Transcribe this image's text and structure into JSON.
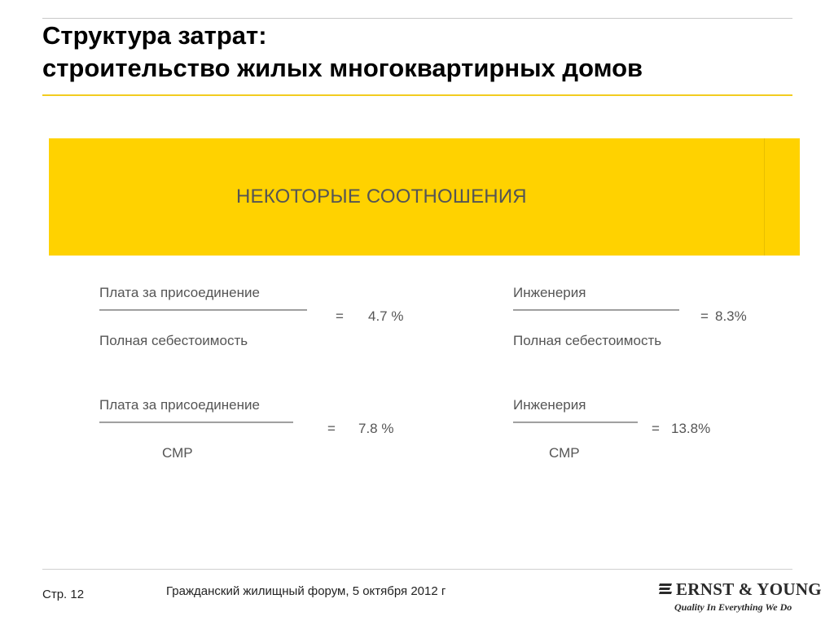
{
  "slide": {
    "title_line1": "Структура затрат:",
    "title_line2": "строительство жилых многоквартирных домов",
    "banner": "НЕКОТОРЫЕ СООТНОШЕНИЯ"
  },
  "ratios": [
    {
      "numerator": "Плата за присоединение",
      "line": "———————————————",
      "equals": "=",
      "value": "4.7 %",
      "denominator": "Полная себестоимость"
    },
    {
      "numerator": "Инженерия",
      "line": "————————————",
      "equals": "=",
      "value": "8.3%",
      "denominator": "Полная себестоимость"
    },
    {
      "numerator": "Плата за присоединение",
      "line": "——————————————",
      "equals": "=",
      "value": "7.8 %",
      "denominator": "СМР"
    },
    {
      "numerator": "Инженерия",
      "line": "—————————",
      "equals": "=",
      "value": "13.8%",
      "denominator": "СМР"
    }
  ],
  "footer": {
    "page": "Стр. 12",
    "event": "Гражданский жилищный форум, 5 октября 2012 г",
    "logo_name": "ERNST & YOUNG",
    "logo_tagline": "Quality In Everything We Do"
  }
}
